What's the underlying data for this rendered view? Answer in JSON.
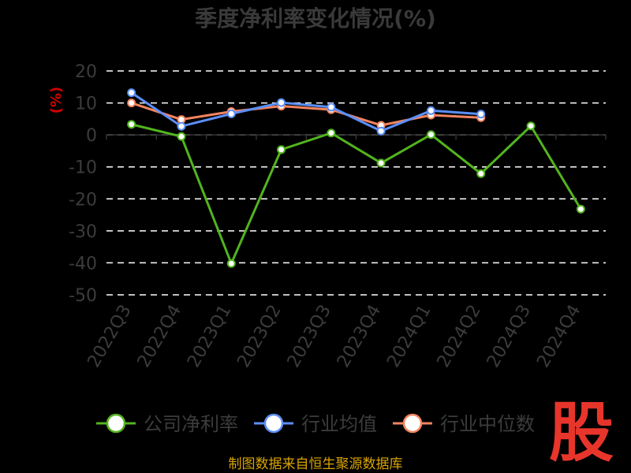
{
  "chart_data": {
    "type": "line",
    "title": "季度净利率变化情况(%)",
    "ylabel": "(%)",
    "xlabel": "",
    "ylim": [
      -50,
      20
    ],
    "yticks": [
      20,
      10,
      0,
      -10,
      -20,
      -30,
      -40,
      -50
    ],
    "categories": [
      "2022Q3",
      "2022Q4",
      "2023Q1",
      "2023Q2",
      "2023Q3",
      "2023Q4",
      "2024Q1",
      "2024Q2",
      "2024Q3",
      "2024Q4"
    ],
    "grid": true,
    "legend_position": "bottom",
    "series": [
      {
        "name": "公司净利率",
        "color": "#52b41e",
        "values": [
          3.3,
          -0.5,
          -40.2,
          -4.6,
          0.6,
          -8.8,
          0.1,
          -12.1,
          2.8,
          -23.2
        ]
      },
      {
        "name": "行业均值",
        "color": "#5b8ff9",
        "values": [
          13.2,
          2.7,
          6.6,
          10.1,
          8.7,
          1.2,
          7.6,
          6.5,
          null,
          null
        ]
      },
      {
        "name": "行业中位数",
        "color": "#f4845f",
        "values": [
          10.0,
          4.8,
          7.3,
          9.0,
          7.9,
          3.0,
          6.2,
          5.4,
          null,
          null
        ]
      }
    ]
  },
  "source_text": "制图数据来自恒生聚源数据库",
  "logo_text": "股"
}
